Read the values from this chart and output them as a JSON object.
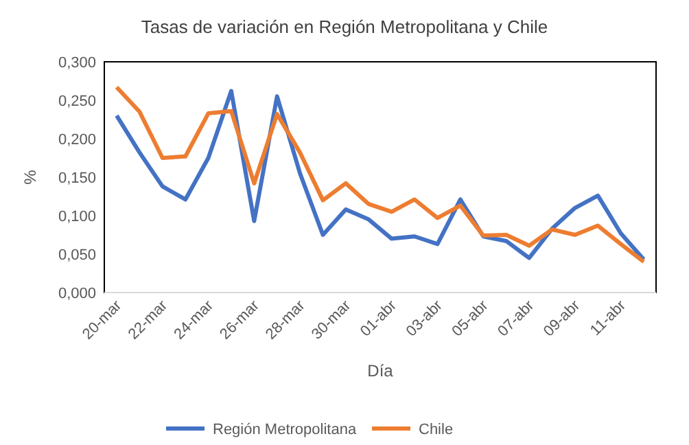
{
  "chart_data": {
    "type": "line",
    "title": "Tasas de variación en Región Metropolitana y Chile",
    "xlabel": "Día",
    "ylabel": "%",
    "categories": [
      "20-mar",
      null,
      "22-mar",
      null,
      "24-mar",
      null,
      "26-mar",
      null,
      "28-mar",
      null,
      "30-mar",
      null,
      "01-abr",
      null,
      "03-abr",
      null,
      "05-abr",
      null,
      "07-abr",
      null,
      "09-abr",
      null,
      "11-abr",
      null
    ],
    "series": [
      {
        "name": "Región Metropolitana",
        "color": "#4472c4",
        "values": [
          0.23,
          0.182,
          0.138,
          0.121,
          0.175,
          0.262,
          0.093,
          0.255,
          0.155,
          0.075,
          0.108,
          0.095,
          0.07,
          0.073,
          0.063,
          0.121,
          0.073,
          0.067,
          0.045,
          0.083,
          0.11,
          0.126,
          0.077,
          0.043
        ]
      },
      {
        "name": "Chile",
        "color": "#ed7d31",
        "values": [
          0.267,
          0.235,
          0.175,
          0.177,
          0.233,
          0.236,
          0.142,
          0.232,
          0.182,
          0.12,
          0.142,
          0.115,
          0.105,
          0.121,
          0.097,
          0.113,
          0.074,
          0.075,
          0.061,
          0.082,
          0.075,
          0.087,
          0.063,
          0.04
        ]
      }
    ],
    "ylim": [
      0,
      0.3
    ],
    "yticks": [
      {
        "value": 0,
        "label": "0,000"
      },
      {
        "value": 0.05,
        "label": "0,050"
      },
      {
        "value": 0.1,
        "label": "0,100"
      },
      {
        "value": 0.15,
        "label": "0,150"
      },
      {
        "value": 0.2,
        "label": "0,200"
      },
      {
        "value": 0.25,
        "label": "0,250"
      },
      {
        "value": 0.3,
        "label": "0,300"
      }
    ],
    "grid": false,
    "legend": "bottom",
    "marker": "none",
    "line_style": "solid"
  }
}
